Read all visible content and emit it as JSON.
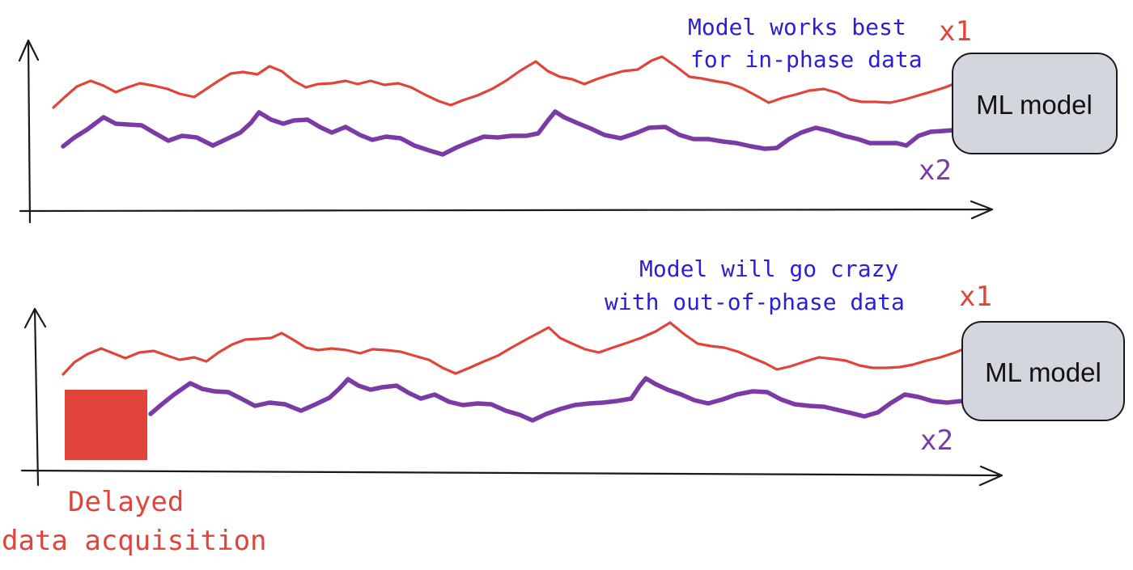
{
  "colors": {
    "x1": "#e0443a",
    "x2": "#7b3aa6",
    "note": "#2a1fd6",
    "delay_block": "#e0443a",
    "model_box": "#d3d6dc"
  },
  "top_panel": {
    "note_line1": "Model works best",
    "note_line2": "for in-phase data",
    "x1_label": "x1",
    "x2_label": "x2",
    "model_label": "ML model"
  },
  "bottom_panel": {
    "note_line1": "Model will go crazy",
    "note_line2": "with out-of-phase data",
    "x1_label": "x1",
    "x2_label": "x2",
    "model_label": "ML model",
    "delay_line1": "Delayed",
    "delay_line2": "data acquisition"
  }
}
